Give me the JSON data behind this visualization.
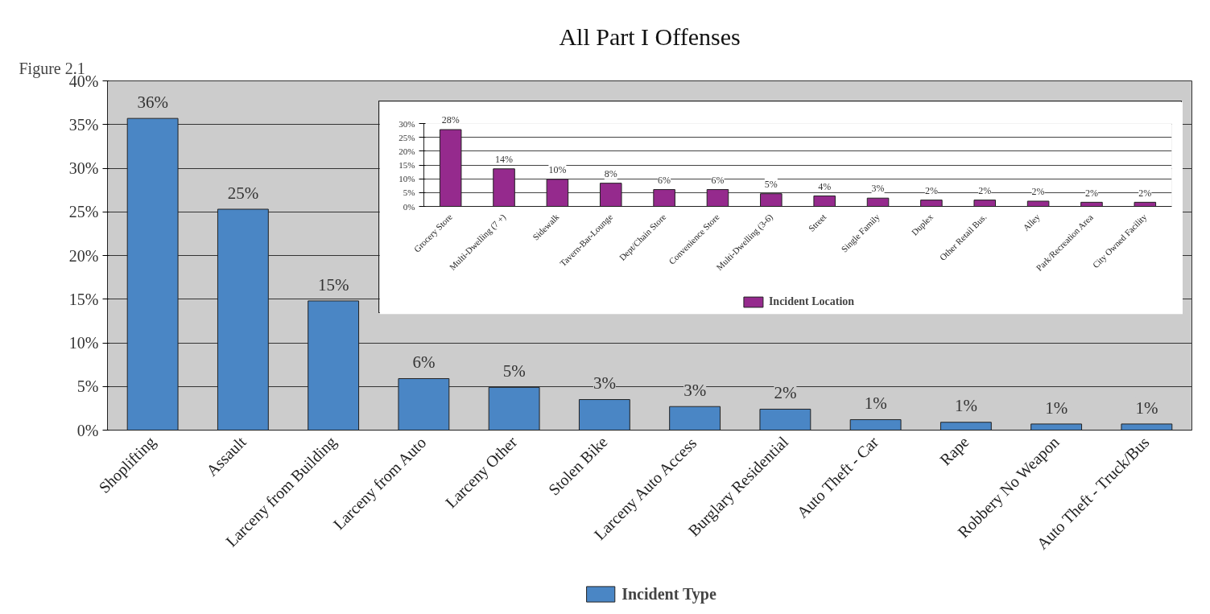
{
  "chart_data": [
    {
      "type": "bar",
      "title": "All Part I Offenses",
      "annotations": [
        "Figure 2.1"
      ],
      "categories": [
        "Shoplifting",
        "Assault",
        "Larceny from Building",
        "Larceny from Auto",
        "Larceny Other",
        "Stolen Bike",
        "Larceny Auto Access",
        "Burglary Residential",
        "Auto Theft - Car",
        "Rape",
        "Robbery No Weapon",
        "Auto Theft - Truck/Bus"
      ],
      "series": [
        {
          "name": "Incident Type",
          "color": "#4a86c5",
          "values": [
            35.7,
            25.3,
            14.8,
            5.9,
            4.9,
            3.5,
            2.7,
            2.4,
            1.2,
            0.9,
            0.7,
            0.7
          ],
          "value_labels": [
            "36%",
            "25%",
            "15%",
            "6%",
            "5%",
            "3%",
            "3%",
            "2%",
            "1%",
            "1%",
            "1%",
            "1%"
          ]
        }
      ],
      "ylim": [
        0,
        40
      ],
      "yticks": [
        {
          "value": 0,
          "label": "0%"
        },
        {
          "value": 5,
          "label": "5%"
        },
        {
          "value": 10,
          "label": "10%"
        },
        {
          "value": 15,
          "label": "15%"
        },
        {
          "value": 20,
          "label": "20%"
        },
        {
          "value": 25,
          "label": "25%"
        },
        {
          "value": 30,
          "label": "30%"
        },
        {
          "value": 35,
          "label": "35%"
        },
        {
          "value": 40,
          "label": "40%"
        }
      ],
      "grid": "y",
      "legend": "bottom"
    },
    {
      "type": "bar",
      "categories": [
        "Grocery Store",
        "Multi-Dwelling (7 +)",
        "Sidewalk",
        "Tavern-Bar-Lounge",
        "Dept/Chain Store",
        "Convenience Store",
        "Multi-Dwelling (3-6)",
        "Street",
        "Single Family",
        "Duplex",
        "Other Retail Bus.",
        "Alley",
        "Park/Recreation Area",
        "City Owned Facility"
      ],
      "series": [
        {
          "name": "Incident Location",
          "color": "#952a8d",
          "values": [
            27.8,
            13.6,
            9.8,
            8.4,
            6.1,
            6.1,
            4.6,
            3.8,
            3.0,
            2.3,
            2.3,
            1.9,
            1.5,
            1.5
          ],
          "value_labels": [
            "28%",
            "14%",
            "10%",
            "8%",
            "6%",
            "6%",
            "5%",
            "4%",
            "3%",
            "2%",
            "2%",
            "2%",
            "2%",
            "2%"
          ]
        }
      ],
      "ylim": [
        0,
        30
      ],
      "yticks": [
        {
          "value": 0,
          "label": "0%"
        },
        {
          "value": 5,
          "label": "5%"
        },
        {
          "value": 10,
          "label": "10%"
        },
        {
          "value": 15,
          "label": "15%"
        },
        {
          "value": 20,
          "label": "20%"
        },
        {
          "value": 25,
          "label": "25%"
        },
        {
          "value": 30,
          "label": "30%"
        }
      ],
      "grid": "y",
      "legend": "bottom"
    }
  ]
}
